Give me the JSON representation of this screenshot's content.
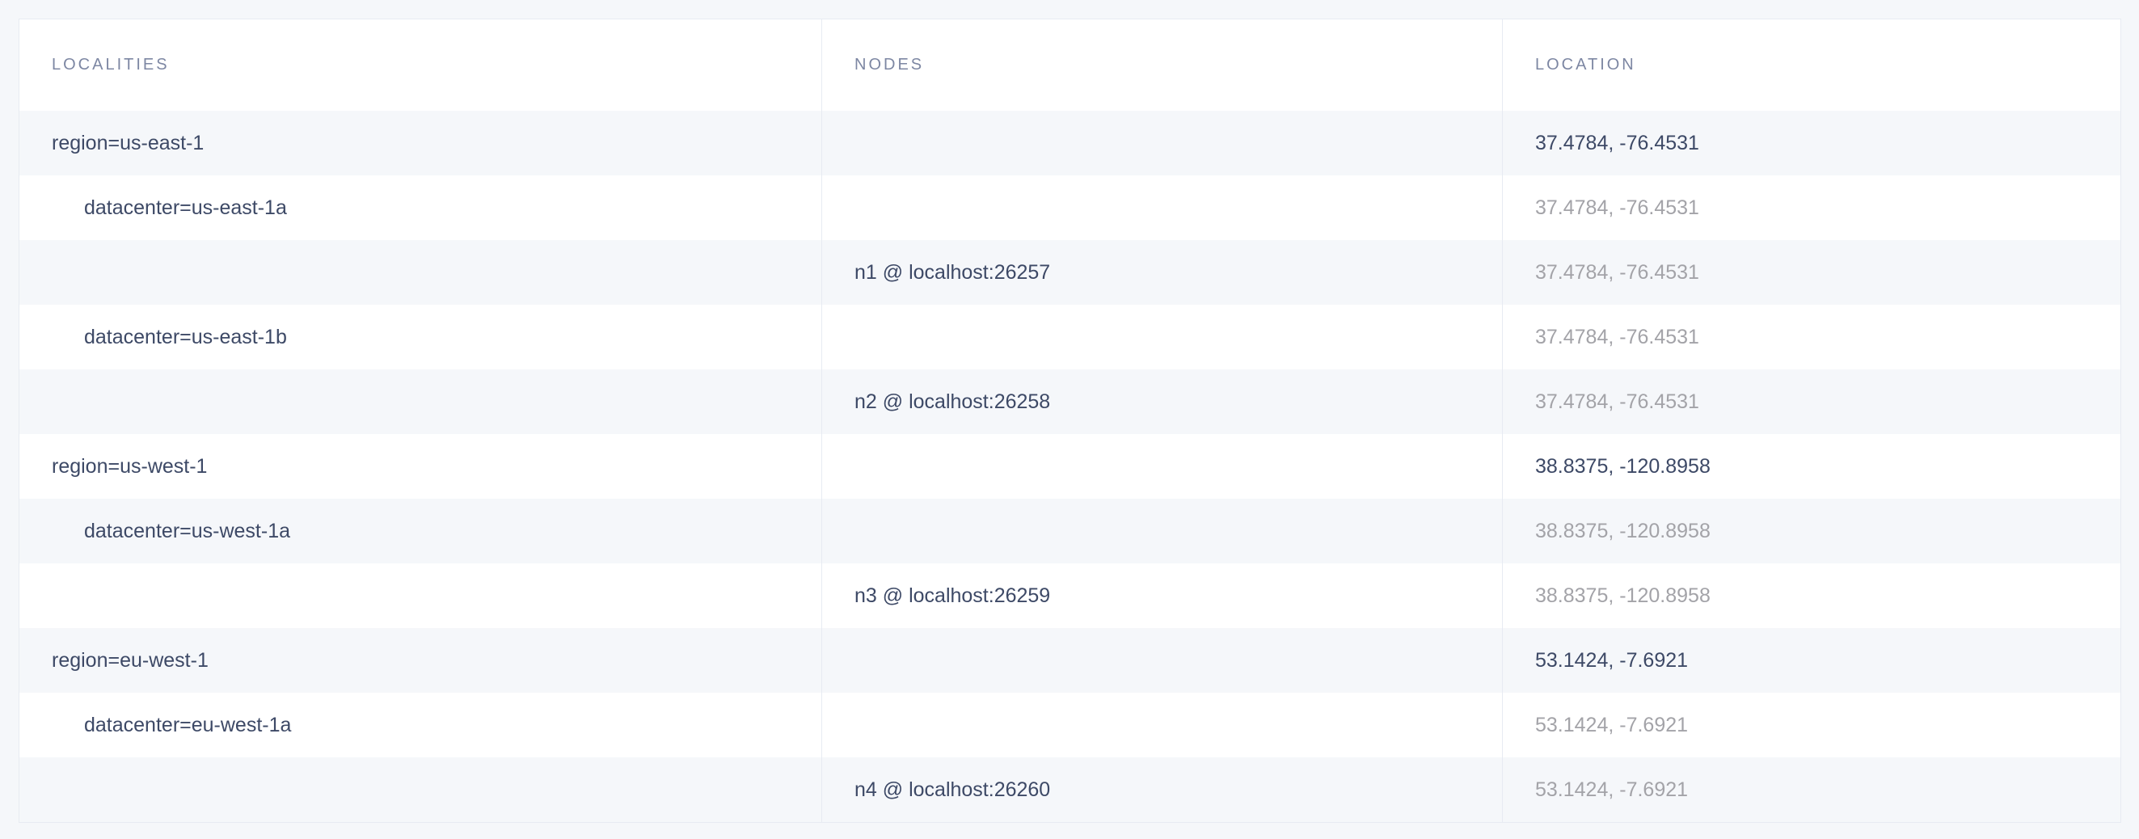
{
  "columns": {
    "localities": "LOCALITIES",
    "nodes": "NODES",
    "location": "LOCATION"
  },
  "rows": [
    {
      "locality": "region=us-east-1",
      "node": "",
      "location": "37.4784, -76.4531",
      "level": 0
    },
    {
      "locality": "datacenter=us-east-1a",
      "node": "",
      "location": "37.4784, -76.4531",
      "level": 1
    },
    {
      "locality": "",
      "node": "n1 @ localhost:26257",
      "location": "37.4784, -76.4531",
      "level": 2
    },
    {
      "locality": "datacenter=us-east-1b",
      "node": "",
      "location": "37.4784, -76.4531",
      "level": 1
    },
    {
      "locality": "",
      "node": "n2 @ localhost:26258",
      "location": "37.4784, -76.4531",
      "level": 2
    },
    {
      "locality": "region=us-west-1",
      "node": "",
      "location": "38.8375, -120.8958",
      "level": 0
    },
    {
      "locality": "datacenter=us-west-1a",
      "node": "",
      "location": "38.8375, -120.8958",
      "level": 1
    },
    {
      "locality": "",
      "node": "n3 @ localhost:26259",
      "location": "38.8375, -120.8958",
      "level": 2
    },
    {
      "locality": "region=eu-west-1",
      "node": "",
      "location": "53.1424, -7.6921",
      "level": 0
    },
    {
      "locality": "datacenter=eu-west-1a",
      "node": "",
      "location": "53.1424, -7.6921",
      "level": 1
    },
    {
      "locality": "",
      "node": "n4 @ localhost:26260",
      "location": "53.1424, -7.6921",
      "level": 2
    }
  ],
  "colors": {
    "text": "#3d4966",
    "muted": "#a3a3a8",
    "header": "#7d87a3",
    "stripe": "#f5f7fa",
    "border": "#e7ebf2"
  }
}
